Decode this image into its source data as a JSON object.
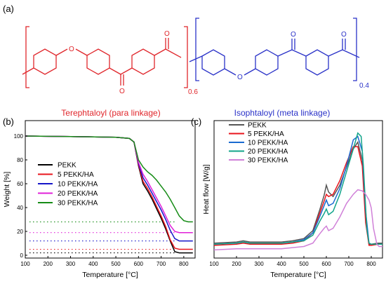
{
  "panel_a": {
    "label": "(a)",
    "atom_o": "O",
    "para_fraction": "0.6",
    "meta_fraction": "0.4"
  },
  "chart_data": [
    {
      "type": "line",
      "panel_label": "(b)",
      "title": "Terephtaloyl (para linkage)",
      "title_color": "#e0262b",
      "xlabel": "Temperature [°C]",
      "ylabel": "Weight [%]",
      "xlim": [
        100,
        850
      ],
      "ylim": [
        0,
        100
      ],
      "xticks": [
        100,
        200,
        300,
        400,
        500,
        600,
        700,
        800
      ],
      "yticks": [
        0,
        20,
        40,
        60,
        80,
        100
      ],
      "legend_position": "center-left",
      "series": [
        {
          "name": "PEKK",
          "color": "#000000",
          "x": [
            100,
            300,
            500,
            560,
            580,
            600,
            620,
            640,
            660,
            680,
            700,
            720,
            740,
            760,
            780,
            800,
            840
          ],
          "y": [
            100,
            99.6,
            99,
            98,
            95,
            75,
            60,
            54,
            47,
            39,
            31,
            22,
            12,
            3,
            2,
            2,
            2
          ]
        },
        {
          "name": "5 PEKK/HA",
          "color": "#e8141c",
          "x": [
            100,
            300,
            500,
            560,
            580,
            600,
            620,
            640,
            660,
            680,
            700,
            720,
            740,
            760,
            780,
            800,
            840
          ],
          "y": [
            100,
            99.6,
            99,
            98,
            95,
            76,
            62,
            56,
            49,
            41,
            33,
            24,
            13,
            6,
            5,
            5,
            5
          ]
        },
        {
          "name": "10 PEKK/HA",
          "color": "#1515c9",
          "x": [
            100,
            300,
            500,
            560,
            580,
            600,
            620,
            640,
            660,
            680,
            700,
            720,
            740,
            760,
            780,
            800,
            840
          ],
          "y": [
            100,
            99.6,
            99,
            98,
            95,
            77,
            65,
            59,
            52,
            45,
            38,
            30,
            21,
            14,
            12,
            12,
            12
          ]
        },
        {
          "name": "20 PEKK/HA",
          "color": "#e020d8",
          "x": [
            100,
            300,
            500,
            560,
            580,
            600,
            620,
            640,
            660,
            680,
            700,
            720,
            740,
            760,
            780,
            800,
            840
          ],
          "y": [
            100,
            99.6,
            99,
            98,
            95,
            78,
            68,
            62,
            55,
            48,
            41,
            33,
            25,
            20,
            19,
            19,
            19
          ]
        },
        {
          "name": "30 PEKK/HA",
          "color": "#168c16",
          "x": [
            100,
            300,
            500,
            560,
            580,
            600,
            620,
            640,
            660,
            680,
            700,
            720,
            740,
            760,
            780,
            800,
            820,
            840
          ],
          "y": [
            100,
            99.6,
            99,
            98,
            95,
            80,
            74,
            70,
            67,
            63,
            58,
            53,
            47,
            40,
            33,
            29,
            28,
            28
          ]
        }
      ],
      "reference_lines": [
        {
          "color": "#000000",
          "y": 2
        },
        {
          "color": "#e8141c",
          "y": 5
        },
        {
          "color": "#1515c9",
          "y": 12
        },
        {
          "color": "#e020d8",
          "y": 19
        },
        {
          "color": "#168c16",
          "y": 28
        }
      ]
    },
    {
      "type": "line",
      "panel_label": "(c)",
      "title": "Isophtaloyl (meta linkage)",
      "title_color": "#2a32c8",
      "xlabel": "Temperature [°C]",
      "ylabel": "Heat flow [W/g]",
      "xlim": [
        100,
        850
      ],
      "xticks": [
        100,
        200,
        300,
        400,
        500,
        600,
        700,
        800
      ],
      "y_ticks_shown": false,
      "legend_position": "top-center",
      "series": [
        {
          "name": "PEKK",
          "color": "#555555",
          "x": [
            100,
            200,
            230,
            260,
            300,
            400,
            450,
            500,
            540,
            570,
            590,
            600,
            610,
            630,
            660,
            690,
            720,
            740,
            760,
            775,
            790,
            800,
            830,
            850
          ],
          "y": [
            0.07,
            0.08,
            0.09,
            0.08,
            0.08,
            0.08,
            0.09,
            0.11,
            0.18,
            0.36,
            0.49,
            0.58,
            0.52,
            0.48,
            0.58,
            0.74,
            0.9,
            0.96,
            0.8,
            0.3,
            0.06,
            0.06,
            0.07,
            0.07
          ]
        },
        {
          "name": "5 PEKK/HA",
          "color": "#e8141c",
          "x": [
            100,
            200,
            230,
            260,
            300,
            400,
            450,
            500,
            540,
            570,
            590,
            600,
            610,
            630,
            660,
            690,
            720,
            740,
            760,
            775,
            790,
            800,
            830,
            850
          ],
          "y": [
            0.05,
            0.06,
            0.07,
            0.06,
            0.06,
            0.06,
            0.07,
            0.09,
            0.16,
            0.33,
            0.44,
            0.5,
            0.48,
            0.5,
            0.62,
            0.78,
            0.92,
            0.92,
            0.75,
            0.25,
            0.05,
            0.05,
            0.06,
            0.06
          ]
        },
        {
          "name": "10 PEKK/HA",
          "color": "#1a6ad0",
          "x": [
            100,
            200,
            230,
            260,
            300,
            400,
            450,
            500,
            540,
            570,
            590,
            600,
            610,
            630,
            660,
            690,
            720,
            740,
            760,
            775,
            790,
            800,
            830,
            850
          ],
          "y": [
            0.06,
            0.07,
            0.08,
            0.07,
            0.07,
            0.07,
            0.08,
            0.1,
            0.16,
            0.3,
            0.4,
            0.45,
            0.4,
            0.42,
            0.55,
            0.75,
            0.98,
            1.01,
            0.88,
            0.35,
            0.07,
            0.06,
            0.06,
            0.06
          ]
        },
        {
          "name": "20 PEKK/HA",
          "color": "#12a48a",
          "x": [
            100,
            200,
            230,
            260,
            300,
            400,
            450,
            500,
            540,
            570,
            590,
            600,
            610,
            630,
            660,
            690,
            720,
            740,
            755,
            765,
            780,
            790,
            800,
            830,
            850
          ],
          "y": [
            0.06,
            0.07,
            0.08,
            0.07,
            0.07,
            0.07,
            0.08,
            0.09,
            0.14,
            0.26,
            0.33,
            0.37,
            0.32,
            0.35,
            0.5,
            0.7,
            0.9,
            1.04,
            1.01,
            0.75,
            0.2,
            0.07,
            0.06,
            0.06,
            0.06
          ]
        },
        {
          "name": "30 PEKK/HA",
          "color": "#d080d8",
          "x": [
            100,
            200,
            300,
            400,
            450,
            500,
            540,
            570,
            590,
            600,
            610,
            630,
            660,
            690,
            720,
            740,
            760,
            775,
            790,
            800,
            810,
            825,
            835,
            850
          ],
          "y": [
            0.01,
            0.02,
            0.02,
            0.02,
            0.03,
            0.04,
            0.07,
            0.15,
            0.2,
            0.22,
            0.18,
            0.2,
            0.3,
            0.42,
            0.5,
            0.54,
            0.53,
            0.5,
            0.45,
            0.38,
            0.2,
            0.06,
            0.04,
            0.04
          ]
        }
      ]
    }
  ]
}
